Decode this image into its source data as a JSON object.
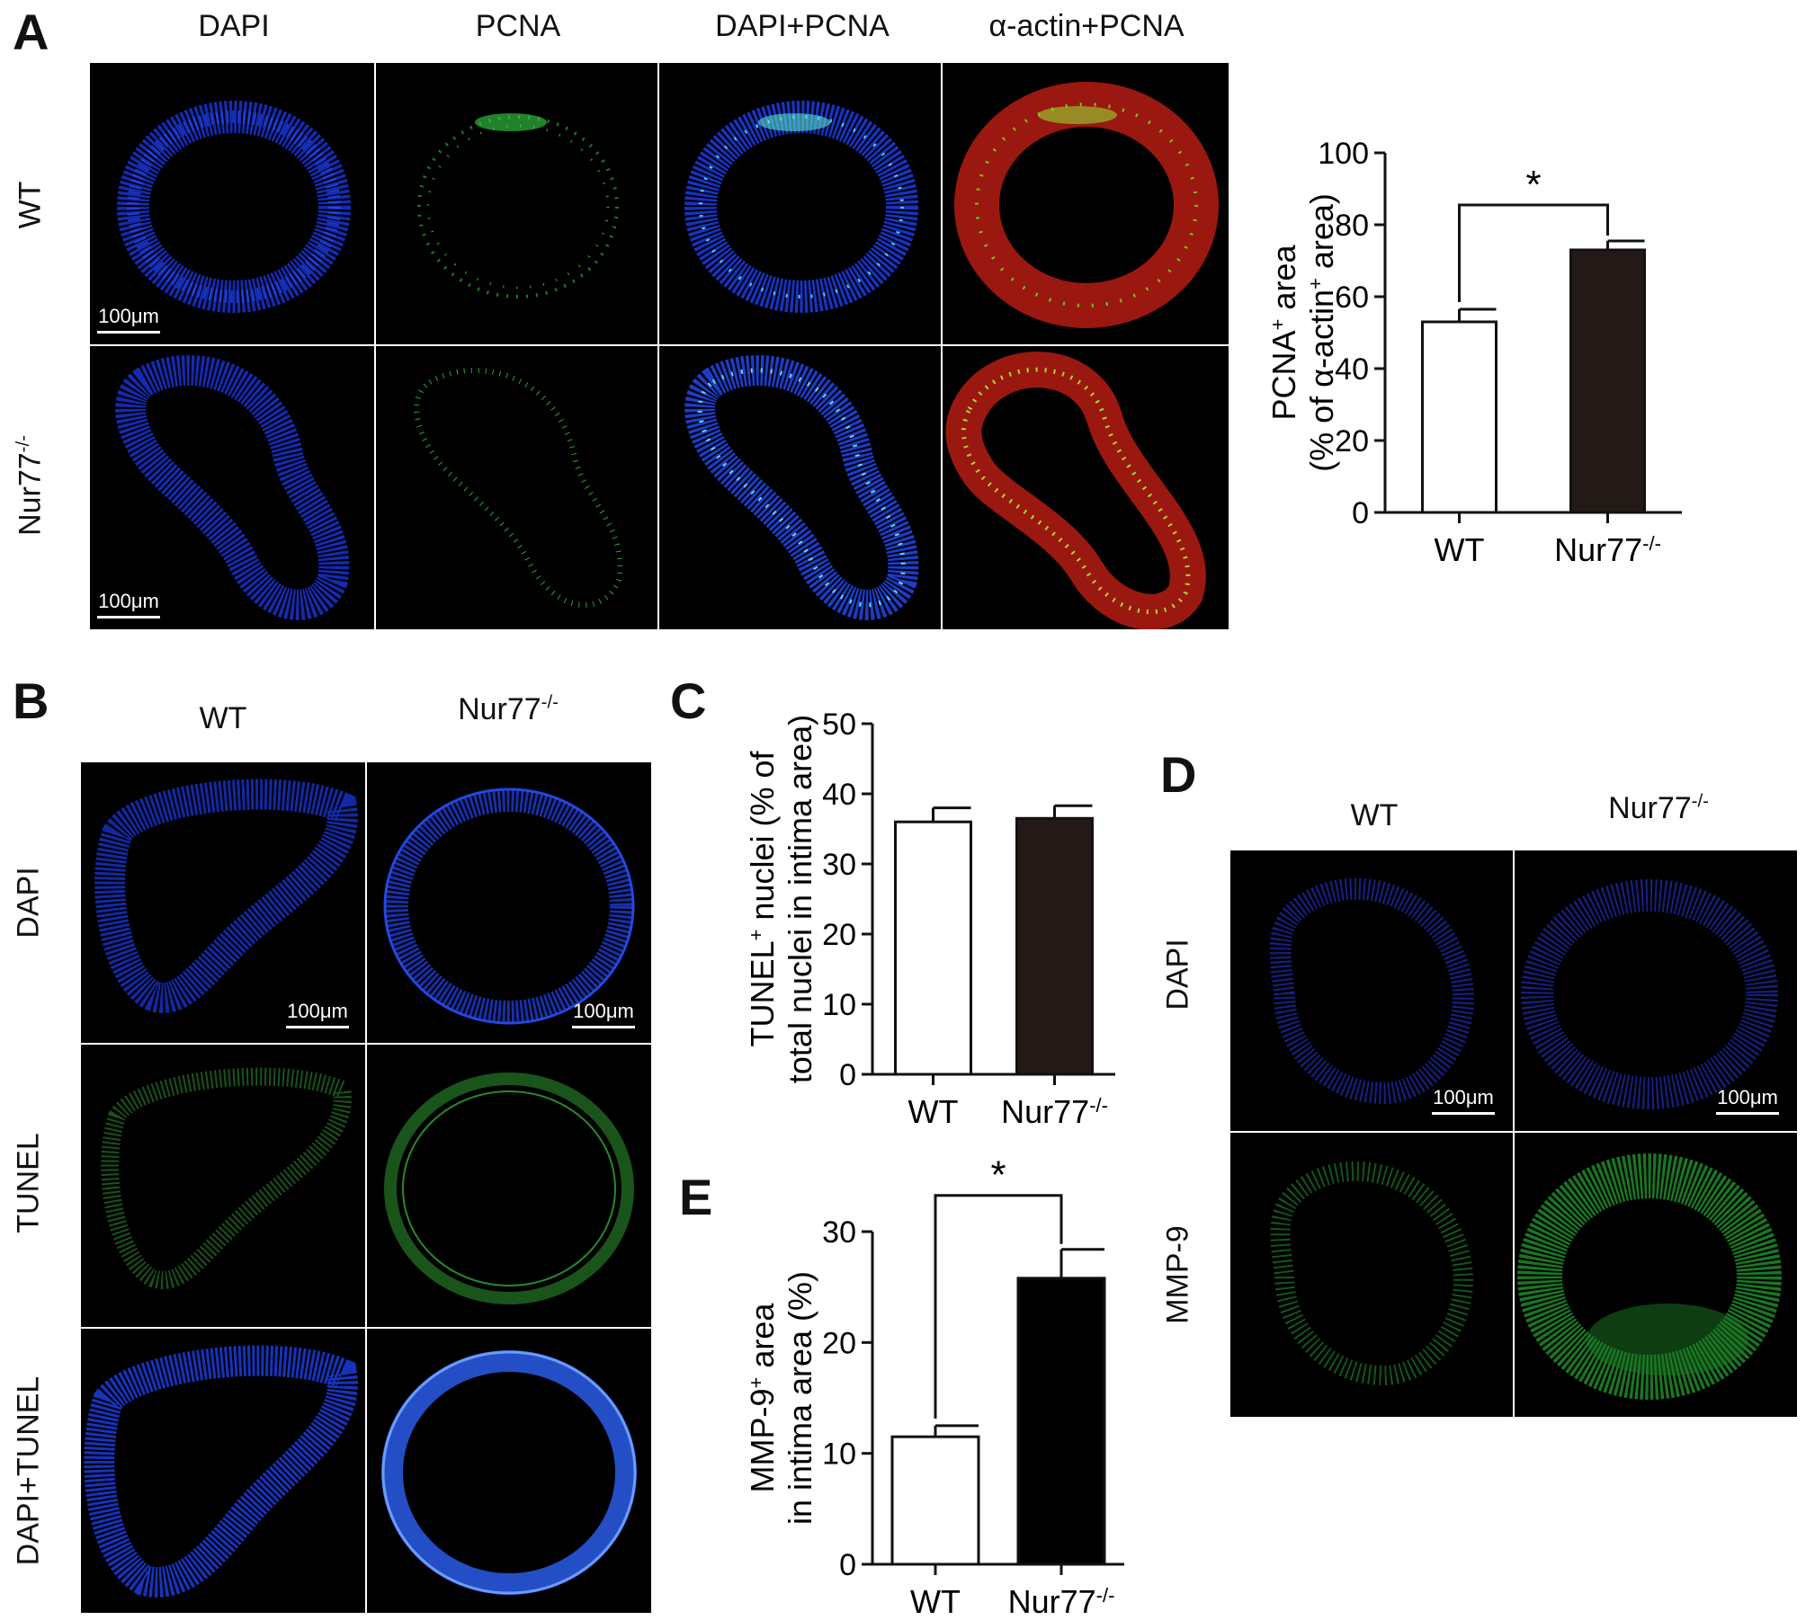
{
  "panel_a": {
    "letter": "A",
    "columns": [
      "DAPI",
      "PCNA",
      "DAPI+PCNA",
      "α-actin+PCNA"
    ],
    "rows": [
      "WT",
      "Nur77",
      "-/-"
    ],
    "scale_bar": "100μm"
  },
  "panel_b": {
    "letter": "B",
    "columns": [
      "WT",
      "Nur77",
      "-/-"
    ],
    "rows": [
      "DAPI",
      "TUNEL",
      "DAPI+TUNEL"
    ],
    "scale_bar": "100μm"
  },
  "panel_d": {
    "letter": "D",
    "columns": [
      "WT",
      "Nur77",
      "-/-"
    ],
    "rows": [
      "DAPI",
      "MMP-9"
    ],
    "scale_bar": "100μm"
  },
  "chart_data": [
    {
      "id": "A",
      "type": "bar",
      "categories": [
        "WT",
        "Nur77-/-"
      ],
      "values": [
        53,
        73
      ],
      "errors": [
        3.5,
        2.5
      ],
      "colors": [
        "#ffffff",
        "#231a17"
      ],
      "ylim": [
        0,
        100
      ],
      "yticks": [
        0,
        20,
        40,
        60,
        80,
        100
      ],
      "ylabel_line1": "PCNA+ area",
      "ylabel_line2": "(% of α-actin+ area)",
      "significance": "*"
    },
    {
      "id": "C",
      "letter": "C",
      "type": "bar",
      "categories": [
        "WT",
        "Nur77-/-"
      ],
      "values": [
        36,
        36.5
      ],
      "errors": [
        2,
        1.8
      ],
      "colors": [
        "#ffffff",
        "#231a17"
      ],
      "ylim": [
        0,
        50
      ],
      "yticks": [
        0,
        10,
        20,
        30,
        40,
        50
      ],
      "ylabel_line1": "TUNEL+ nuclei (% of",
      "ylabel_line2": "total nuclei in intima area)"
    },
    {
      "id": "E",
      "letter": "E",
      "type": "bar",
      "categories": [
        "WT",
        "Nur77-/-"
      ],
      "values": [
        11.5,
        25.8
      ],
      "errors": [
        1,
        2.6
      ],
      "colors": [
        "#ffffff",
        "#000000"
      ],
      "ylim": [
        0,
        30
      ],
      "yticks": [
        0,
        10,
        20,
        30
      ],
      "ylabel_line1": "MMP-9+ area",
      "ylabel_line2": "in intima area (%)",
      "significance": "*"
    }
  ]
}
